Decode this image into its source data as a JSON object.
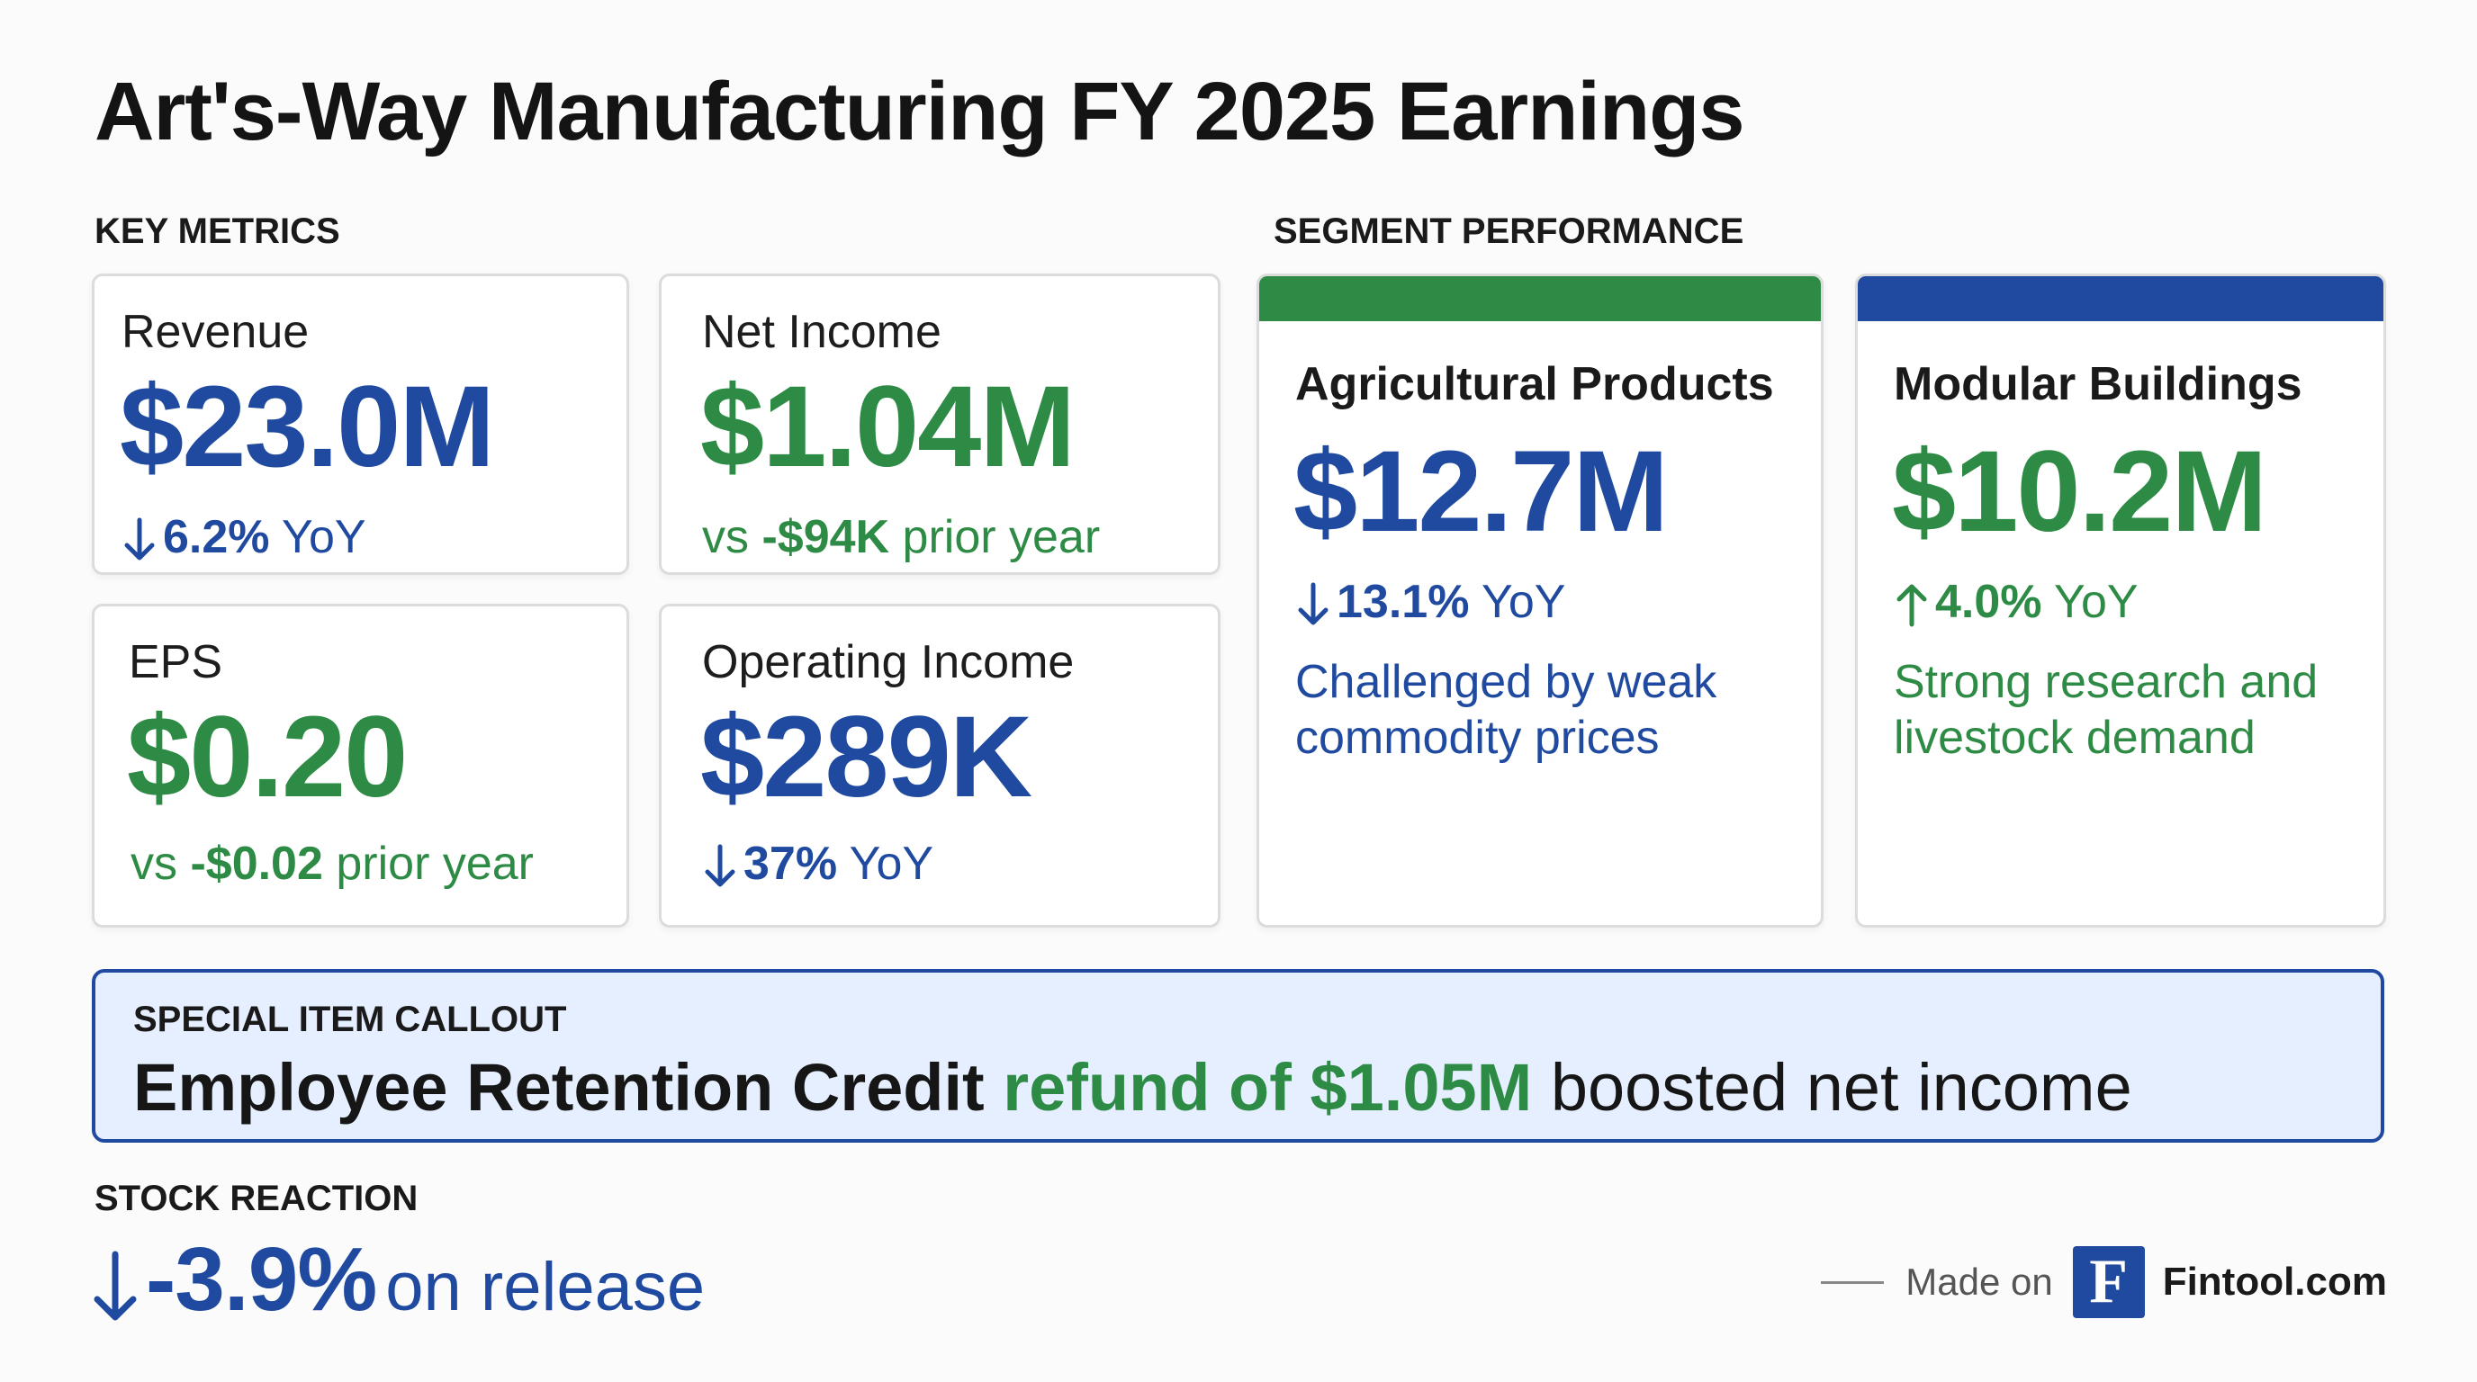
{
  "title": "Art's-Way Manufacturing FY 2025 Earnings",
  "sections": {
    "key_metrics": "KEY METRICS",
    "segment_performance": "SEGMENT PERFORMANCE",
    "stock_reaction": "STOCK REACTION"
  },
  "metrics": [
    {
      "label": "Revenue",
      "value": "$23.0M",
      "value_color": "#1f4aa0",
      "change": "6.2%",
      "change_suffix": " YoY",
      "direction": "down"
    },
    {
      "label": "Net Income",
      "value": "$1.04M",
      "value_color": "#2e8b45",
      "prefix": "vs ",
      "prior": "-$94K",
      "suffix": " prior year"
    },
    {
      "label": "EPS",
      "value": "$0.20",
      "value_color": "#2e8b45",
      "prefix": "vs ",
      "prior": "-$0.02",
      "suffix": " prior year"
    },
    {
      "label": "Operating Income",
      "value": "$289K",
      "value_color": "#1f4aa0",
      "change": "37%",
      "change_suffix": " YoY",
      "direction": "down"
    }
  ],
  "segments": [
    {
      "name": "Agricultural Products",
      "value": "$12.7M",
      "change": "13.1%",
      "change_suffix": " YoY",
      "direction": "down",
      "note": "Challenged by weak commodity prices",
      "color": "#2e8b45",
      "text_color": "#1f4aa0"
    },
    {
      "name": "Modular Buildings",
      "value": "$10.2M",
      "change": "4.0%",
      "change_suffix": " YoY",
      "direction": "up",
      "note": "Strong research and livestock demand",
      "color": "#1f4aa0",
      "text_color": "#2e8b45"
    }
  ],
  "callout": {
    "label": "SPECIAL ITEM CALLOUT",
    "part1": "Employee Retention Credit",
    "part2": "refund of $1.05M",
    "part3": "boosted net income"
  },
  "stock": {
    "value": "-3.9%",
    "text": "on release",
    "direction": "down"
  },
  "footer": {
    "made_on": "Made on",
    "logo_letter": "F",
    "brand": "Fintool.com"
  },
  "colors": {
    "blue": "#1f4aa0",
    "green": "#2e8b45"
  }
}
